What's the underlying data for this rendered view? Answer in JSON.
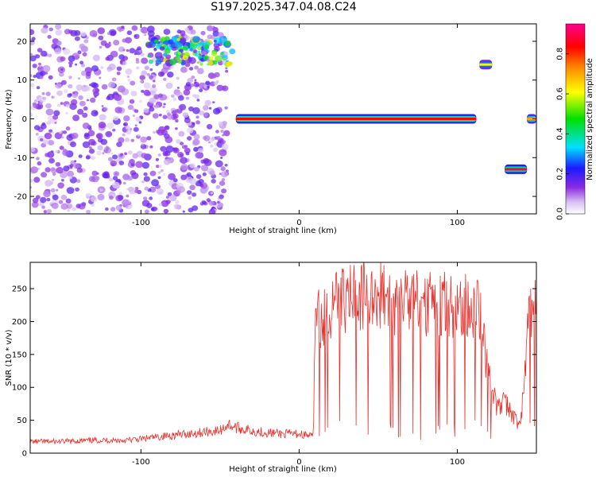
{
  "title": "S197.2025.347.04.08.C24",
  "chart_data": [
    {
      "type": "heatmap",
      "name": "spectrogram",
      "xlabel": "Height of straight line (km)",
      "ylabel": "Frequency (Hz)",
      "xlim": [
        -170,
        150
      ],
      "ylim": [
        -24.5,
        24.5
      ],
      "xticks": [
        -100,
        0,
        100
      ],
      "yticks": [
        -20,
        -10,
        0,
        10,
        20
      ],
      "colorbar": {
        "label": "Normalized spectral amplitude",
        "range": [
          0,
          0.95
        ],
        "ticks": [
          "0.0",
          "0.2",
          "0.4",
          "0.6",
          "0.8"
        ]
      },
      "features": [
        {
          "label": "noise region",
          "x_range": [
            -170,
            -45
          ],
          "freq_range": [
            -24,
            24
          ],
          "amplitude": 0.1
        },
        {
          "label": "high feature",
          "x_range": [
            -95,
            -42
          ],
          "freq_range": [
            14,
            21
          ],
          "amplitude": 0.35
        },
        {
          "label": "main line",
          "x_range": [
            -40,
            112
          ],
          "freq": 0,
          "amplitude": 0.85
        },
        {
          "label": "secondary line",
          "x_range": [
            114,
            122
          ],
          "freq": 14,
          "amplitude": 0.6
        },
        {
          "label": "negative line",
          "x_range": [
            130,
            144
          ],
          "freq": -13,
          "amplitude": 0.9
        },
        {
          "label": "end line",
          "x_range": [
            144,
            150
          ],
          "freq": 0,
          "amplitude": 0.7
        }
      ]
    },
    {
      "type": "line",
      "name": "snr",
      "xlabel": "Height of straight line (km)",
      "ylabel": "SNR (10 * v/v)",
      "xlim": [
        -170,
        150
      ],
      "ylim": [
        0,
        290
      ],
      "xticks": [
        -100,
        0,
        100
      ],
      "yticks": [
        0,
        50,
        100,
        150,
        200,
        250
      ],
      "color": "#e8302c",
      "x": [
        -170,
        -150,
        -130,
        -110,
        -100,
        -90,
        -80,
        -70,
        -60,
        -50,
        -45,
        -40,
        -30,
        -20,
        -10,
        0,
        5,
        9,
        10,
        15,
        20,
        30,
        40,
        50,
        55,
        60,
        70,
        80,
        90,
        100,
        105,
        110,
        115,
        118,
        120,
        125,
        130,
        135,
        140,
        145,
        150
      ],
      "y": [
        18,
        18,
        20,
        20,
        22,
        25,
        28,
        30,
        33,
        35,
        45,
        40,
        35,
        32,
        30,
        30,
        28,
        25,
        200,
        215,
        225,
        240,
        250,
        245,
        240,
        238,
        235,
        232,
        232,
        232,
        230,
        228,
        215,
        150,
        120,
        70,
        80,
        60,
        40,
        210,
        230
      ]
    }
  ]
}
